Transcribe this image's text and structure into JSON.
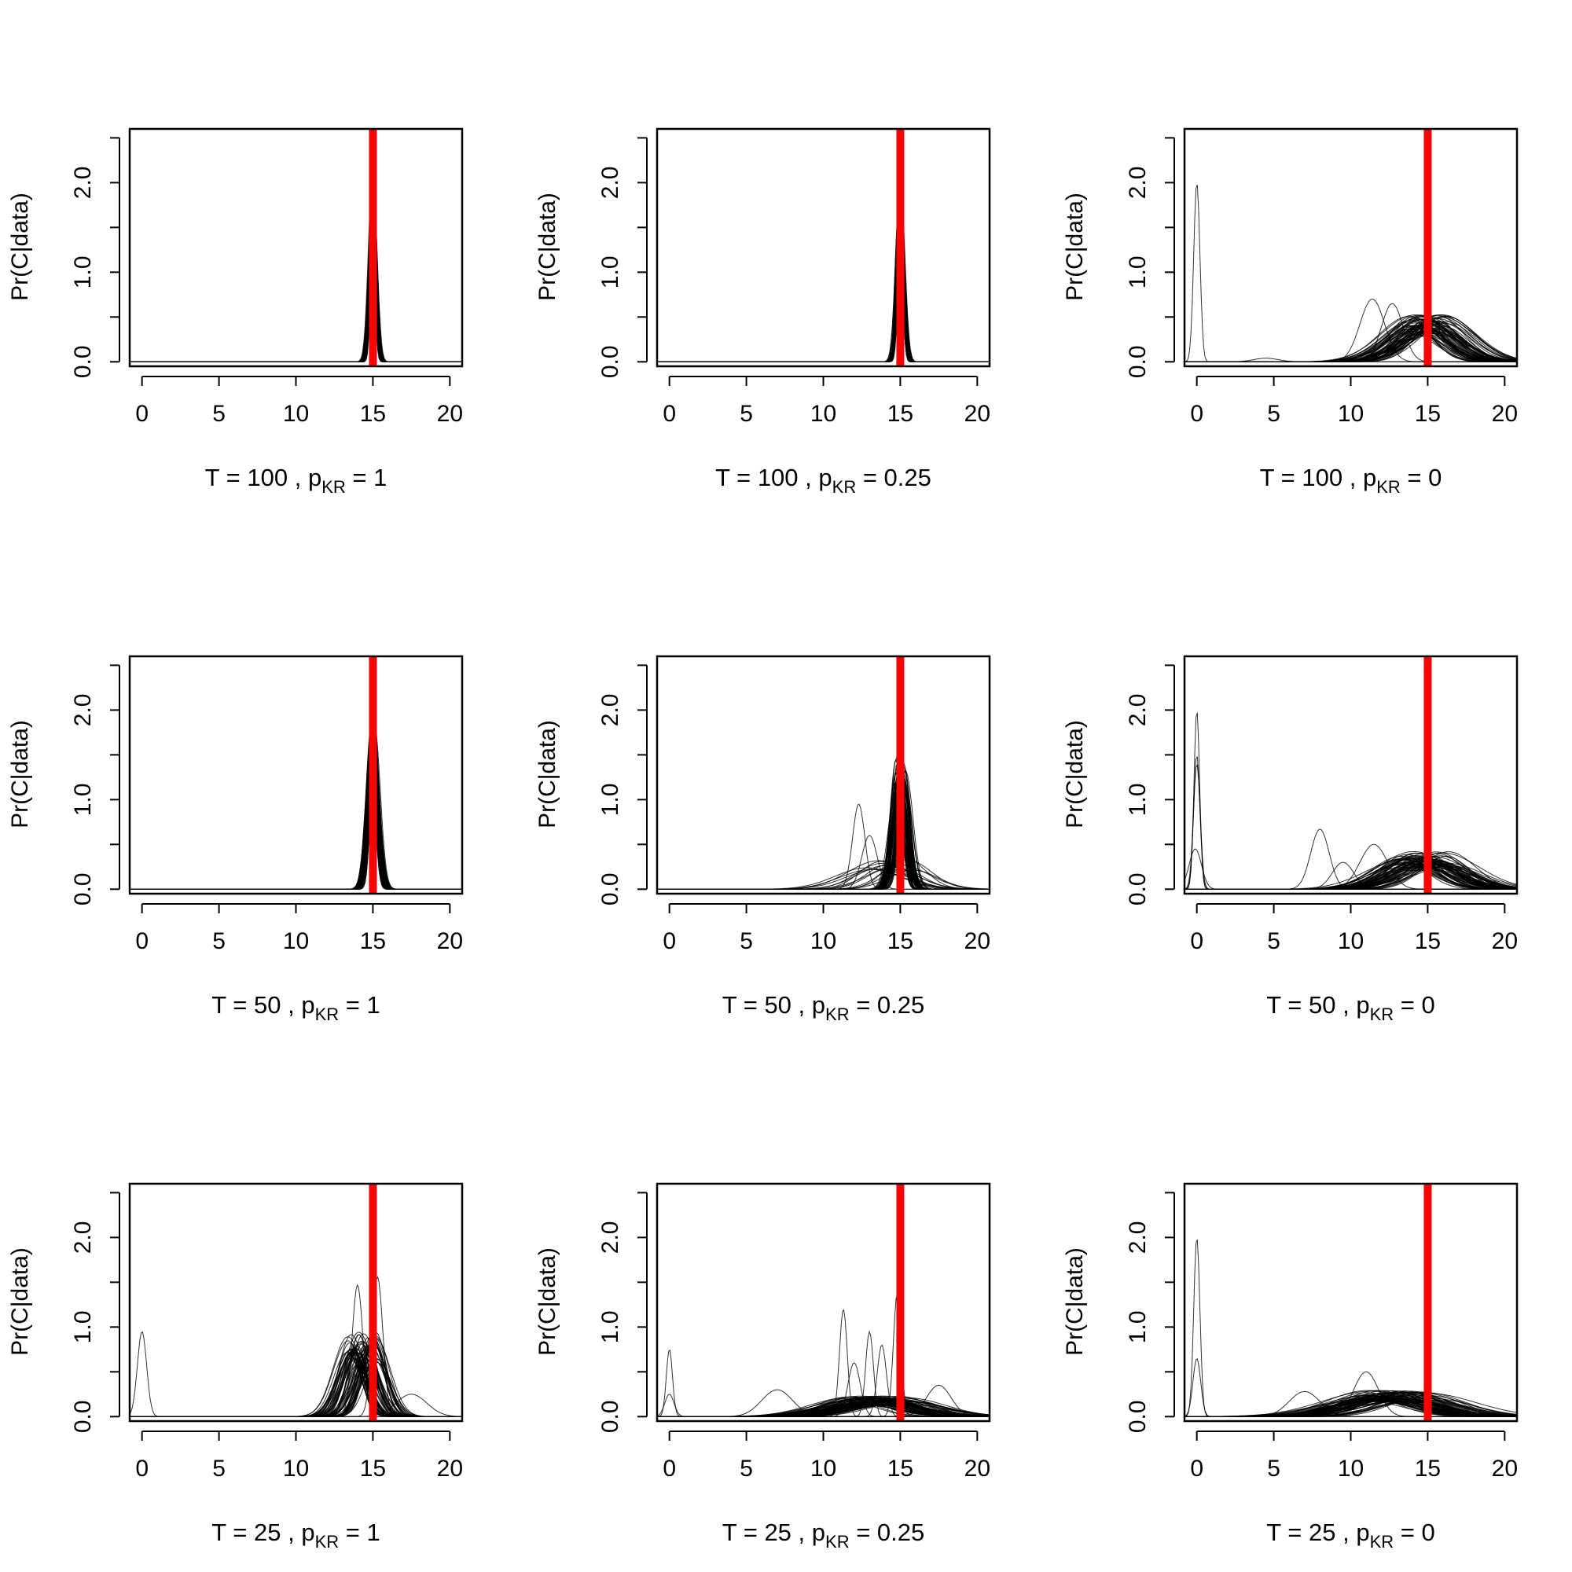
{
  "figure": {
    "y_axis_label": "Pr(C|data)",
    "true_value_color": "#ff0000",
    "curve_color": "#000000"
  },
  "chart_data": [
    {
      "type": "line",
      "T": "100",
      "pKR": "1",
      "xlabel_parts": [
        "T = ",
        "100",
        " , ",
        "p",
        "KR",
        " = ",
        "1"
      ],
      "ylabel": "Pr(C|data)",
      "xlim": [
        -0.8,
        20.8
      ],
      "ylim": [
        -0.05,
        2.6
      ],
      "xticks": [
        "0",
        "5",
        "10",
        "15",
        "20"
      ],
      "yticks": [
        "0.0",
        "1.0",
        "2.0"
      ],
      "true_value": 15,
      "density_curves": [
        {
          "mode": 15,
          "height": 1.95,
          "sd": 0.2,
          "count": 70,
          "spread": 0.05
        }
      ],
      "extra_curves": []
    },
    {
      "type": "line",
      "T": "100",
      "pKR": "0.25",
      "xlabel_parts": [
        "T = ",
        "100",
        " , ",
        "p",
        "KR",
        " = ",
        "0.25"
      ],
      "ylabel": "Pr(C|data)",
      "xlim": [
        -0.8,
        20.8
      ],
      "ylim": [
        -0.05,
        2.6
      ],
      "xticks": [
        "0",
        "5",
        "10",
        "15",
        "20"
      ],
      "yticks": [
        "0.0",
        "1.0",
        "2.0"
      ],
      "true_value": 15,
      "density_curves": [
        {
          "mode": 15,
          "height": 1.9,
          "sd": 0.21,
          "count": 70,
          "spread": 0.05
        }
      ],
      "extra_curves": []
    },
    {
      "type": "line",
      "T": "100",
      "pKR": "0",
      "xlabel_parts": [
        "T = ",
        "100",
        " , ",
        "p",
        "KR",
        " = ",
        "0"
      ],
      "ylabel": "Pr(C|data)",
      "xlim": [
        -0.8,
        20.8
      ],
      "ylim": [
        -0.05,
        2.6
      ],
      "xticks": [
        "0",
        "5",
        "10",
        "15",
        "20"
      ],
      "yticks": [
        "0.0",
        "1.0",
        "2.0"
      ],
      "true_value": 15,
      "density_curves": [
        {
          "mode": 15,
          "height": 0.5,
          "sd": 1.7,
          "count": 70,
          "spread": 1.2
        }
      ],
      "extra_curves": [
        {
          "mode": 0,
          "height": 2.0,
          "sd": 0.2
        },
        {
          "mode": 11.4,
          "height": 0.7,
          "sd": 0.8
        },
        {
          "mode": 12.7,
          "height": 0.65,
          "sd": 0.7
        },
        {
          "mode": 4.5,
          "height": 0.04,
          "sd": 0.8
        }
      ]
    },
    {
      "type": "line",
      "T": "50",
      "pKR": "1",
      "xlabel_parts": [
        "T = ",
        "50",
        " , ",
        "p",
        "KR",
        " = ",
        "1"
      ],
      "ylabel": "Pr(C|data)",
      "xlim": [
        -0.8,
        20.8
      ],
      "ylim": [
        -0.05,
        2.6
      ],
      "xticks": [
        "0",
        "5",
        "10",
        "15",
        "20"
      ],
      "yticks": [
        "0.0",
        "1.0",
        "2.0"
      ],
      "true_value": 15,
      "density_curves": [
        {
          "mode": 15,
          "height": 1.8,
          "sd": 0.3,
          "count": 70,
          "spread": 0.1
        }
      ],
      "extra_curves": []
    },
    {
      "type": "line",
      "T": "50",
      "pKR": "0.25",
      "xlabel_parts": [
        "T = ",
        "50",
        " , ",
        "p",
        "KR",
        " = ",
        "0.25"
      ],
      "ylabel": "Pr(C|data)",
      "xlim": [
        -0.8,
        20.8
      ],
      "ylim": [
        -0.05,
        2.6
      ],
      "xticks": [
        "0",
        "5",
        "10",
        "15",
        "20"
      ],
      "yticks": [
        "0.0",
        "1.0",
        "2.0"
      ],
      "true_value": 15,
      "density_curves": [
        {
          "mode": 15,
          "height": 1.4,
          "sd": 0.4,
          "count": 60,
          "spread": 0.35
        },
        {
          "mode": 14.5,
          "height": 0.35,
          "sd": 1.6,
          "count": 14,
          "spread": 1.8
        }
      ],
      "extra_curves": [
        {
          "mode": 12.3,
          "height": 0.95,
          "sd": 0.4
        },
        {
          "mode": 13,
          "height": 0.6,
          "sd": 0.5
        }
      ]
    },
    {
      "type": "line",
      "T": "50",
      "pKR": "0",
      "xlabel_parts": [
        "T = ",
        "50",
        " , ",
        "p",
        "KR",
        " = ",
        "0"
      ],
      "ylabel": "Pr(C|data)",
      "xlim": [
        -0.8,
        20.8
      ],
      "ylim": [
        -0.05,
        2.6
      ],
      "xticks": [
        "0",
        "5",
        "10",
        "15",
        "20"
      ],
      "yticks": [
        "0.0",
        "1.0",
        "2.0"
      ],
      "true_value": 15,
      "density_curves": [
        {
          "mode": 14.8,
          "height": 0.4,
          "sd": 1.9,
          "count": 70,
          "spread": 1.6
        }
      ],
      "extra_curves": [
        {
          "mode": 0,
          "height": 2.0,
          "sd": 0.18
        },
        {
          "mode": 0,
          "height": 1.5,
          "sd": 0.2
        },
        {
          "mode": 0,
          "height": 1.4,
          "sd": 0.22
        },
        {
          "mode": -0.1,
          "height": 0.45,
          "sd": 0.4
        },
        {
          "mode": 8,
          "height": 0.67,
          "sd": 0.6
        },
        {
          "mode": 9.5,
          "height": 0.3,
          "sd": 0.7
        },
        {
          "mode": 11.5,
          "height": 0.5,
          "sd": 0.9
        }
      ]
    },
    {
      "type": "line",
      "T": "25",
      "pKR": "1",
      "xlabel_parts": [
        "T = ",
        "25",
        " , ",
        "p",
        "KR",
        " = ",
        "1"
      ],
      "ylabel": "Pr(C|data)",
      "xlim": [
        -0.8,
        20.8
      ],
      "ylim": [
        -0.05,
        2.6
      ],
      "xticks": [
        "0",
        "5",
        "10",
        "15",
        "20"
      ],
      "yticks": [
        "0.0",
        "1.0",
        "2.0"
      ],
      "true_value": 15,
      "density_curves": [
        {
          "mode": 14.3,
          "height": 0.9,
          "sd": 0.75,
          "count": 70,
          "spread": 1.0
        }
      ],
      "extra_curves": [
        {
          "mode": 0,
          "height": 0.95,
          "sd": 0.3
        },
        {
          "mode": 14,
          "height": 1.47,
          "sd": 0.35
        },
        {
          "mode": 15.3,
          "height": 1.56,
          "sd": 0.35
        },
        {
          "mode": 17.5,
          "height": 0.25,
          "sd": 1.0
        }
      ]
    },
    {
      "type": "line",
      "T": "25",
      "pKR": "0.25",
      "xlabel_parts": [
        "T = ",
        "25",
        " , ",
        "p",
        "KR",
        " = ",
        "0.25"
      ],
      "ylabel": "Pr(C|data)",
      "xlim": [
        -0.8,
        20.8
      ],
      "ylim": [
        -0.05,
        2.6
      ],
      "xticks": [
        "0",
        "5",
        "10",
        "15",
        "20"
      ],
      "yticks": [
        "0.0",
        "1.0",
        "2.0"
      ],
      "true_value": 15,
      "density_curves": [
        {
          "mode": 13.5,
          "height": 0.22,
          "sd": 2.2,
          "count": 70,
          "spread": 2.0
        }
      ],
      "extra_curves": [
        {
          "mode": 0,
          "height": 0.75,
          "sd": 0.2
        },
        {
          "mode": 0,
          "height": 0.25,
          "sd": 0.3
        },
        {
          "mode": 11.3,
          "height": 1.2,
          "sd": 0.25
        },
        {
          "mode": 13,
          "height": 0.95,
          "sd": 0.25
        },
        {
          "mode": 14.8,
          "height": 1.37,
          "sd": 0.25
        },
        {
          "mode": 7,
          "height": 0.3,
          "sd": 1.0
        },
        {
          "mode": 12,
          "height": 0.6,
          "sd": 0.4
        },
        {
          "mode": 13.8,
          "height": 0.8,
          "sd": 0.3
        },
        {
          "mode": 17.5,
          "height": 0.35,
          "sd": 0.8
        }
      ]
    },
    {
      "type": "line",
      "T": "25",
      "pKR": "0",
      "xlabel_parts": [
        "T = ",
        "25",
        " , ",
        "p",
        "KR",
        " = ",
        "0"
      ],
      "ylabel": "Pr(C|data)",
      "xlim": [
        -0.8,
        20.8
      ],
      "ylim": [
        -0.05,
        2.6
      ],
      "xticks": [
        "0",
        "5",
        "10",
        "15",
        "20"
      ],
      "yticks": [
        "0.0",
        "1.0",
        "2.0"
      ],
      "true_value": 15,
      "density_curves": [
        {
          "mode": 13,
          "height": 0.28,
          "sd": 2.5,
          "count": 70,
          "spread": 2.2
        }
      ],
      "extra_curves": [
        {
          "mode": 0,
          "height": 2.0,
          "sd": 0.2
        },
        {
          "mode": 0,
          "height": 0.65,
          "sd": 0.25
        },
        {
          "mode": 7,
          "height": 0.28,
          "sd": 1.0
        },
        {
          "mode": 11,
          "height": 0.5,
          "sd": 0.8
        }
      ]
    }
  ]
}
